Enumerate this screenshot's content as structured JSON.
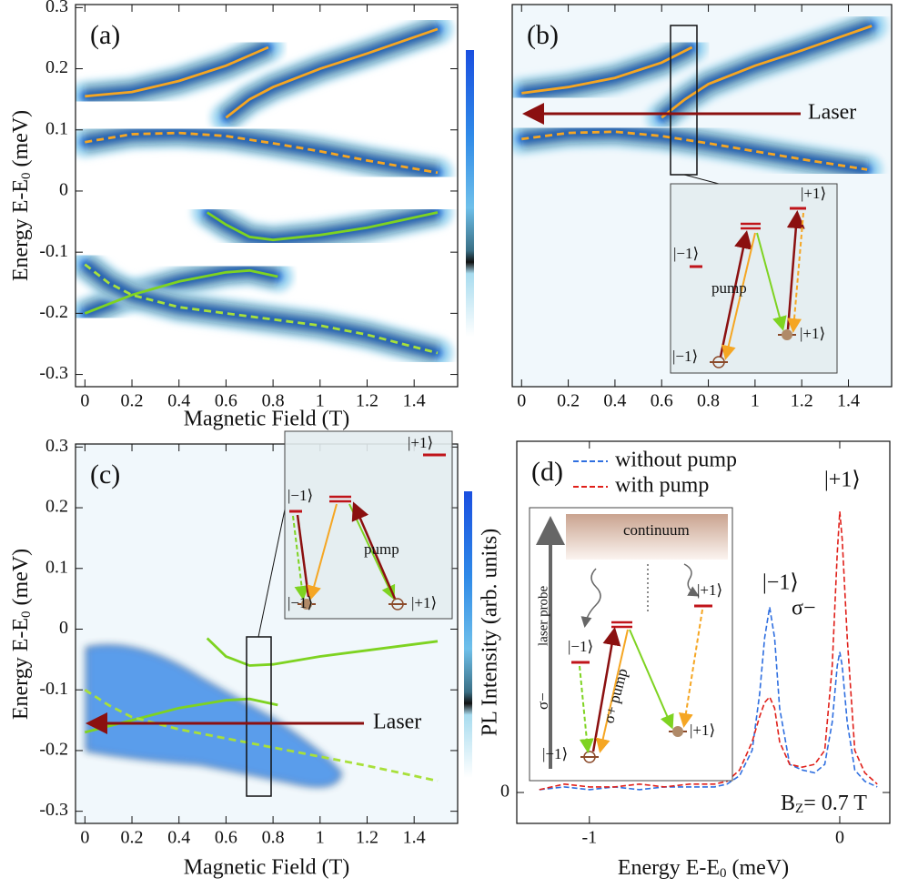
{
  "chart_data": [
    {
      "type": "line",
      "panel_label": "(a)",
      "xlabel": "Magnetic Field (T)",
      "ylabel": {
        "text": "Energy E-E",
        "sub": "0",
        "rest": "  (meV)"
      },
      "xlim": [
        -0.04,
        1.585
      ],
      "ylim": [
        -0.32,
        0.305
      ],
      "xticks": [
        0,
        0.2,
        0.4,
        0.6,
        0.8,
        1,
        1.2,
        1.4
      ],
      "yticks": [
        -0.3,
        -0.2,
        -0.1,
        0,
        0.1,
        0.2,
        0.3
      ],
      "series": [
        {
          "color": "#f5a623",
          "dash": false,
          "x": [
            0,
            0.2,
            0.4,
            0.6,
            0.78
          ],
          "values": [
            0.155,
            0.162,
            0.18,
            0.205,
            0.235
          ]
        },
        {
          "color": "#f5a623",
          "dash": false,
          "x": [
            0.6,
            0.7,
            0.8,
            1.0,
            1.2,
            1.5
          ],
          "values": [
            0.12,
            0.15,
            0.17,
            0.2,
            0.225,
            0.265
          ]
        },
        {
          "color": "#f5a623",
          "dash": true,
          "x": [
            0,
            0.2,
            0.4,
            0.6,
            0.8,
            1.0,
            1.2,
            1.5
          ],
          "values": [
            0.08,
            0.093,
            0.095,
            0.09,
            0.078,
            0.065,
            0.05,
            0.03
          ]
        },
        {
          "color": "#7ed321",
          "dash": false,
          "x": [
            0.52,
            0.6,
            0.7,
            0.8,
            1.0,
            1.2,
            1.5
          ],
          "values": [
            -0.035,
            -0.055,
            -0.075,
            -0.08,
            -0.072,
            -0.06,
            -0.035
          ]
        },
        {
          "color": "#7ed321",
          "dash": false,
          "x": [
            0,
            0.2,
            0.4,
            0.6,
            0.7,
            0.82
          ],
          "values": [
            -0.2,
            -0.17,
            -0.148,
            -0.133,
            -0.13,
            -0.14
          ]
        },
        {
          "color": "#a8e03a",
          "dash": true,
          "x": [
            0,
            0.1,
            0.2,
            0.4,
            0.6,
            0.8,
            1.0,
            1.2,
            1.5
          ],
          "values": [
            -0.12,
            -0.15,
            -0.17,
            -0.19,
            -0.2,
            -0.21,
            -0.22,
            -0.235,
            -0.265
          ]
        }
      ]
    },
    {
      "type": "line",
      "panel_label": "(b)",
      "xlim": [
        -0.04,
        1.585
      ],
      "ylim": [
        -0.32,
        0.305
      ],
      "xticks": [
        0,
        0.2,
        0.4,
        0.6,
        0.8,
        1,
        1.2,
        1.4
      ],
      "series": [
        {
          "color": "#f5a623",
          "dash": false,
          "x": [
            0,
            0.2,
            0.4,
            0.6,
            0.73
          ],
          "values": [
            0.16,
            0.17,
            0.185,
            0.21,
            0.235
          ]
        },
        {
          "color": "#f5a623",
          "dash": false,
          "x": [
            0.6,
            0.7,
            0.8,
            1.0,
            1.2,
            1.5
          ],
          "values": [
            0.12,
            0.15,
            0.175,
            0.205,
            0.23,
            0.27
          ]
        },
        {
          "color": "#f5a623",
          "dash": true,
          "x": [
            0,
            0.2,
            0.4,
            0.6,
            0.8,
            1.0,
            1.2,
            1.48
          ],
          "values": [
            0.085,
            0.095,
            0.097,
            0.09,
            0.078,
            0.065,
            0.052,
            0.035
          ]
        }
      ],
      "annotations": [
        "Laser",
        "|−1⟩",
        "pump",
        "|−1⟩",
        "|+1⟩",
        "|+1⟩"
      ]
    },
    {
      "type": "line",
      "panel_label": "(c)",
      "xlabel": "Magnetic Field (T)",
      "ylabel": {
        "text": "Energy E-E",
        "sub": "0",
        "rest": "  (meV)"
      },
      "xlim": [
        -0.04,
        1.585
      ],
      "ylim": [
        -0.32,
        0.305
      ],
      "xticks": [
        0,
        0.2,
        0.4,
        0.6,
        0.8,
        1,
        1.2,
        1.4
      ],
      "yticks": [
        -0.3,
        -0.2,
        -0.1,
        0,
        0.1,
        0.2,
        0.3
      ],
      "series": [
        {
          "color": "#7ed321",
          "dash": false,
          "x": [
            0.52,
            0.6,
            0.7,
            0.8,
            1.0,
            1.2,
            1.5
          ],
          "values": [
            -0.015,
            -0.045,
            -0.06,
            -0.058,
            -0.045,
            -0.035,
            -0.02
          ]
        },
        {
          "color": "#7ed321",
          "dash": false,
          "x": [
            0,
            0.2,
            0.4,
            0.6,
            0.7,
            0.82
          ],
          "values": [
            -0.17,
            -0.15,
            -0.13,
            -0.117,
            -0.115,
            -0.125
          ]
        },
        {
          "color": "#a8e03a",
          "dash": true,
          "x": [
            0,
            0.1,
            0.2,
            0.4,
            0.6,
            0.8,
            1.0,
            1.2,
            1.5
          ],
          "values": [
            -0.1,
            -0.125,
            -0.145,
            -0.165,
            -0.18,
            -0.195,
            -0.21,
            -0.225,
            -0.25
          ]
        }
      ],
      "annotations": [
        "Laser",
        "|+1⟩",
        "|−1⟩",
        "pump",
        "|−1⟩",
        "|+1⟩"
      ]
    },
    {
      "type": "line",
      "panel_label": "(d)",
      "xlabel": {
        "text": "Energy E-E",
        "sub": "0",
        "rest": " (meV)"
      },
      "ylabel": "PL Intensity (arb. units)",
      "xlim": [
        -1.29,
        0.2
      ],
      "ylim": [
        -0.11,
        1.25
      ],
      "xticks": [
        -1,
        0
      ],
      "yticks": [
        0
      ],
      "x": [
        -1.2,
        -1.1,
        -1.0,
        -0.9,
        -0.8,
        -0.7,
        -0.6,
        -0.5,
        -0.45,
        -0.4,
        -0.35,
        -0.32,
        -0.3,
        -0.28,
        -0.26,
        -0.24,
        -0.2,
        -0.15,
        -0.1,
        -0.06,
        -0.03,
        -0.01,
        0,
        0.01,
        0.03,
        0.06,
        0.1,
        0.15
      ],
      "series": [
        {
          "name": "without  pump",
          "color": "#2f6fe0",
          "dash": true,
          "values": [
            0.01,
            0.02,
            0.01,
            0.02,
            0.01,
            0.02,
            0.02,
            0.02,
            0.03,
            0.06,
            0.15,
            0.35,
            0.55,
            0.66,
            0.55,
            0.3,
            0.1,
            0.08,
            0.07,
            0.1,
            0.25,
            0.45,
            0.5,
            0.45,
            0.25,
            0.08,
            0.04,
            0.02
          ]
        },
        {
          "name": "with  pump",
          "color": "#e0201a",
          "dash": true,
          "values": [
            0.01,
            0.03,
            0.02,
            0.02,
            0.03,
            0.02,
            0.03,
            0.03,
            0.04,
            0.08,
            0.18,
            0.27,
            0.32,
            0.34,
            0.3,
            0.18,
            0.1,
            0.09,
            0.1,
            0.15,
            0.45,
            0.85,
            1.0,
            0.9,
            0.55,
            0.15,
            0.07,
            0.03
          ]
        }
      ],
      "annotations": [
        "|−1⟩",
        "σ−",
        "|+1⟩",
        {
          "text": "B",
          "sub": "Z",
          "rest": "= 0.7 T"
        },
        "continuum",
        "σ−",
        "laser probe",
        "σ+ pump",
        "|−1⟩",
        "|+1⟩",
        "|−1⟩",
        "|+1⟩"
      ]
    }
  ]
}
